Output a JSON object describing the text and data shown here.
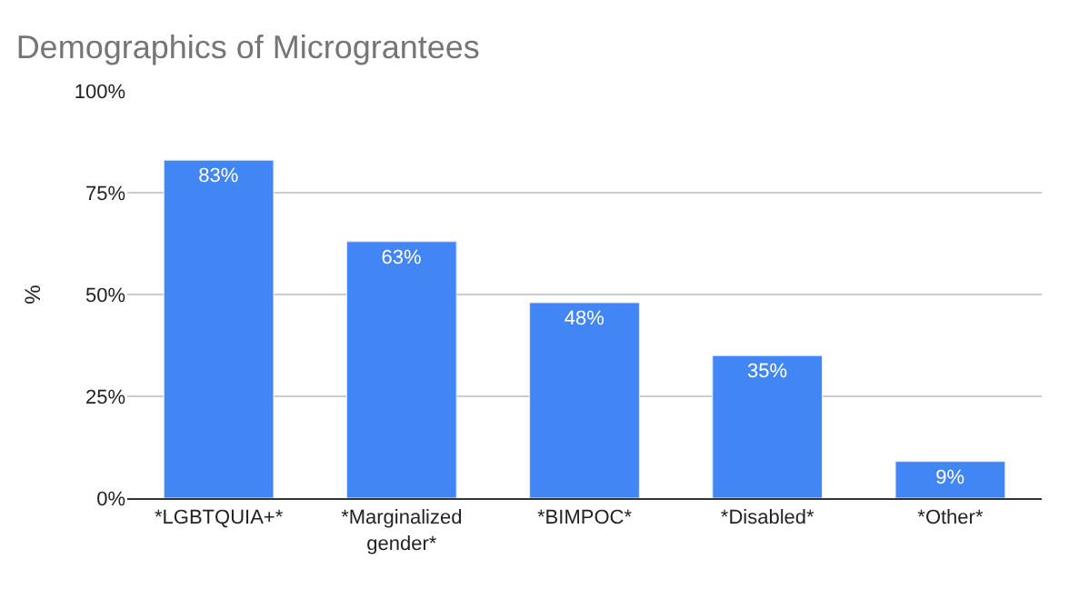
{
  "chart_data": {
    "type": "bar",
    "title": "Demographics of Micrograntees",
    "ylabel": "%",
    "categories": [
      "*LGBTQUIA+*",
      "*Marginalized gender*",
      "*BIMPOC*",
      "*Disabled*",
      "*Other*"
    ],
    "values": [
      83,
      63,
      48,
      35,
      9
    ],
    "value_labels": [
      "83%",
      "63%",
      "48%",
      "35%",
      "9%"
    ],
    "color": "#4285f4",
    "ylim": [
      0,
      100
    ],
    "yticks": [
      {
        "value": 0,
        "label": "0%"
      },
      {
        "value": 25,
        "label": "25%"
      },
      {
        "value": 50,
        "label": "50%"
      },
      {
        "value": 75,
        "label": "75%"
      },
      {
        "value": 100,
        "label": "100%"
      }
    ],
    "grid": "y"
  }
}
